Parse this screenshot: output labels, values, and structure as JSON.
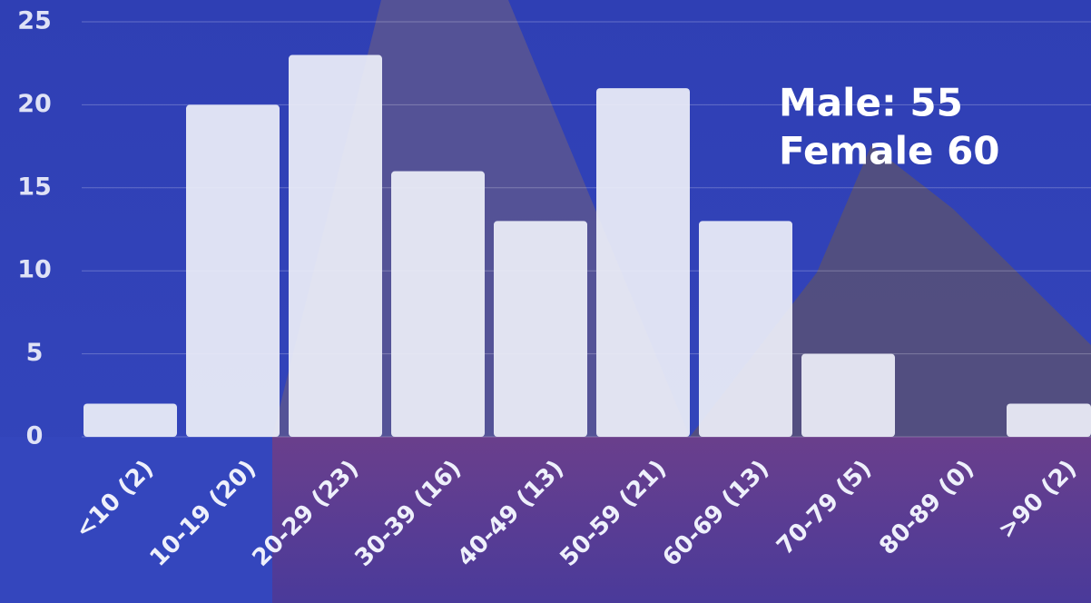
{
  "chart_data": {
    "type": "bar",
    "categories": [
      "<10 (2)",
      "10-19 (20)",
      "20-29 (23)",
      "30-39 (16)",
      "40-49 (13)",
      "50-59 (21)",
      "60-69 (13)",
      "70-79 (5)",
      "80-89 (0)",
      ">90 (2)"
    ],
    "values": [
      2,
      20,
      23,
      16,
      13,
      21,
      13,
      5,
      0,
      2
    ],
    "color": "#eceef8",
    "ylim": [
      0,
      25
    ],
    "yticks": [
      0,
      5,
      10,
      15,
      20,
      25
    ],
    "grid": true,
    "annotations": [
      "Male: 55",
      "Female 60"
    ]
  }
}
